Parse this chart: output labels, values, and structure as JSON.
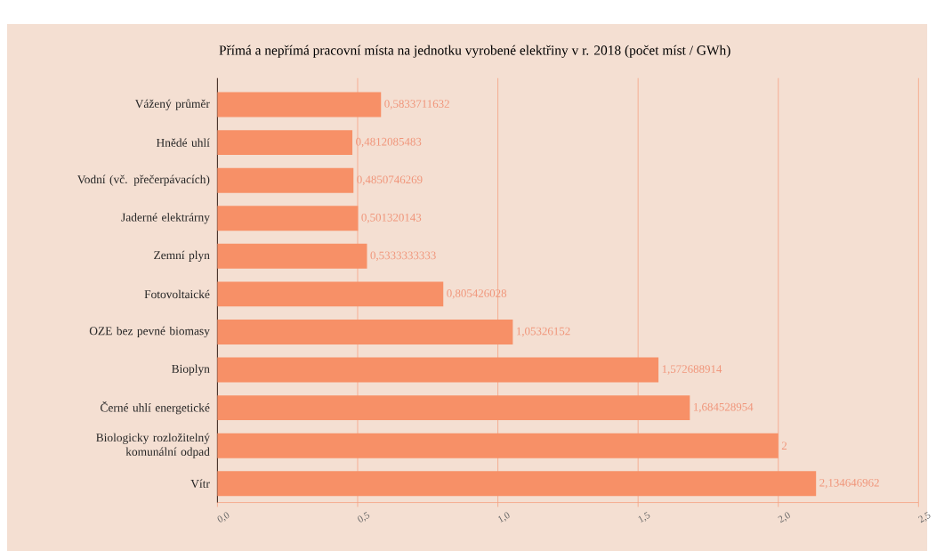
{
  "chart_data": {
    "type": "bar",
    "orientation": "horizontal",
    "title": "Přímá a nepřímá pracovní místa na jednotku vyrobené elektřiny v r. 2018 (počet míst / GWh)",
    "categories": [
      "Vážený průměr",
      "Hnědé uhlí",
      "Vodní (vč. přečerpávacích)",
      "Jaderné elektrárny",
      "Zemní plyn",
      "Fotovoltaické",
      "OZE bez pevné biomasy",
      "Bioplyn",
      "Černé uhlí energetické",
      "Biologicky rozložitelný komunální odpad",
      "Vítr"
    ],
    "values": [
      0.5833711632,
      0.4812085483,
      0.4850746269,
      0.501320143,
      0.5333333333,
      0.805426028,
      1.05326152,
      1.572688914,
      1.684528954,
      2,
      2.134646962
    ],
    "value_labels": [
      "0,5833711632",
      "0,4812085483",
      "0,4850746269",
      "0,501320143",
      "0,5333333333",
      "0,805426028",
      "1,05326152",
      "1,572688914",
      "1,684528954",
      "2",
      "2,134646962"
    ],
    "color": "#f79067",
    "xlim": [
      0,
      2.5
    ],
    "xticks": [
      {
        "value": 0,
        "label": "0,0"
      },
      {
        "value": 0.5,
        "label": "0,5"
      },
      {
        "value": 1,
        "label": "1,0"
      },
      {
        "value": 1.5,
        "label": "1,5"
      },
      {
        "value": 2,
        "label": "2,0"
      },
      {
        "value": 2.5,
        "label": "2,5"
      }
    ],
    "grid": "x"
  }
}
